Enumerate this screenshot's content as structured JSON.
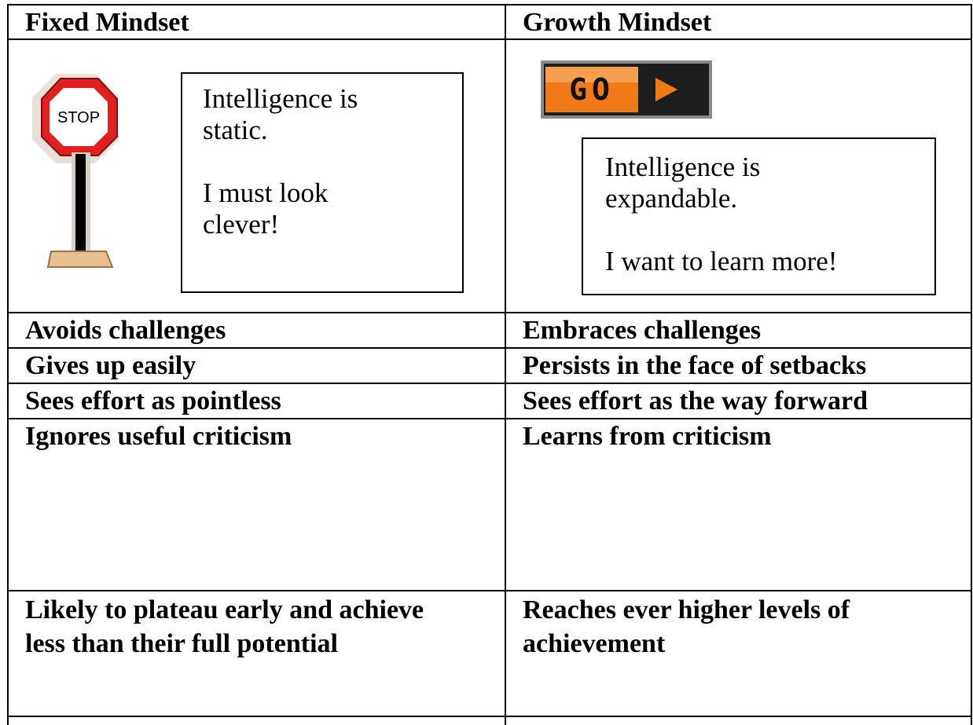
{
  "table": {
    "header": [
      "Fixed Mindset",
      "Growth Mindset"
    ],
    "intro": {
      "fixed": {
        "sign": "STOP",
        "paragraphs": [
          "Intelligence is static.",
          "I must look clever!"
        ]
      },
      "growth": {
        "sign": "GO",
        "paragraphs": [
          "Intelligence is expandable.",
          "I want to learn more!"
        ]
      }
    },
    "rows": [
      [
        "Avoids challenges",
        "Embraces challenges"
      ],
      [
        "Gives up easily",
        "Persists in the face of setbacks"
      ],
      [
        "Sees effort as pointless",
        "Sees effort as the way forward"
      ],
      [
        "Ignores useful criticism",
        "Learns from criticism"
      ],
      [
        "Likely to plateau early and achieve less than their full potential",
        "Reaches ever higher levels of achievement"
      ]
    ]
  }
}
